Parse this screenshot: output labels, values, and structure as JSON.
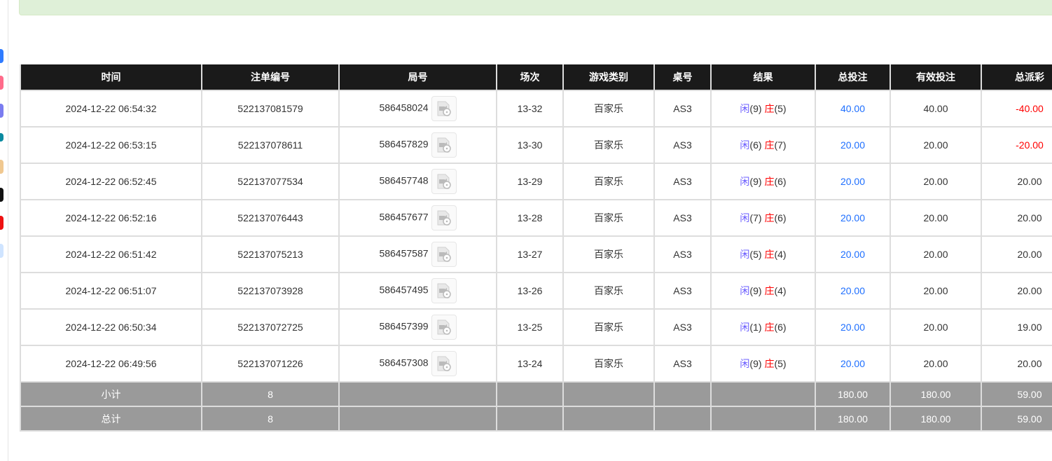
{
  "colors": {
    "header_bg": "#1a1a1a",
    "summary_bg": "#9a9a9a",
    "blue": "#1e6fff",
    "red": "#ff0000",
    "banner_bg": "#dff0d8"
  },
  "table": {
    "headers": [
      "时间",
      "注单编号",
      "局号",
      "场次",
      "游戏类别",
      "桌号",
      "结果",
      "总投注",
      "有效投注",
      "总派彩"
    ],
    "rows": [
      {
        "time": "2024-12-22 06:54:32",
        "bet_id": "522137081579",
        "round": "586458024",
        "session": "13-32",
        "game": "百家乐",
        "table": "AS3",
        "player_label": "闲",
        "player": "(9)",
        "banker_label": "庄",
        "banker": "(5)",
        "total_bet": "40.00",
        "valid_bet": "40.00",
        "payout": "-40.00",
        "payout_negative": true
      },
      {
        "time": "2024-12-22 06:53:15",
        "bet_id": "522137078611",
        "round": "586457829",
        "session": "13-30",
        "game": "百家乐",
        "table": "AS3",
        "player_label": "闲",
        "player": "(6)",
        "banker_label": "庄",
        "banker": "(7)",
        "total_bet": "20.00",
        "valid_bet": "20.00",
        "payout": "-20.00",
        "payout_negative": true
      },
      {
        "time": "2024-12-22 06:52:45",
        "bet_id": "522137077534",
        "round": "586457748",
        "session": "13-29",
        "game": "百家乐",
        "table": "AS3",
        "player_label": "闲",
        "player": "(9)",
        "banker_label": "庄",
        "banker": "(6)",
        "total_bet": "20.00",
        "valid_bet": "20.00",
        "payout": "20.00",
        "payout_negative": false
      },
      {
        "time": "2024-12-22 06:52:16",
        "bet_id": "522137076443",
        "round": "586457677",
        "session": "13-28",
        "game": "百家乐",
        "table": "AS3",
        "player_label": "闲",
        "player": "(7)",
        "banker_label": "庄",
        "banker": "(6)",
        "total_bet": "20.00",
        "valid_bet": "20.00",
        "payout": "20.00",
        "payout_negative": false
      },
      {
        "time": "2024-12-22 06:51:42",
        "bet_id": "522137075213",
        "round": "586457587",
        "session": "13-27",
        "game": "百家乐",
        "table": "AS3",
        "player_label": "闲",
        "player": "(5)",
        "banker_label": "庄",
        "banker": "(4)",
        "total_bet": "20.00",
        "valid_bet": "20.00",
        "payout": "20.00",
        "payout_negative": false
      },
      {
        "time": "2024-12-22 06:51:07",
        "bet_id": "522137073928",
        "round": "586457495",
        "session": "13-26",
        "game": "百家乐",
        "table": "AS3",
        "player_label": "闲",
        "player": "(9)",
        "banker_label": "庄",
        "banker": "(4)",
        "total_bet": "20.00",
        "valid_bet": "20.00",
        "payout": "20.00",
        "payout_negative": false
      },
      {
        "time": "2024-12-22 06:50:34",
        "bet_id": "522137072725",
        "round": "586457399",
        "session": "13-25",
        "game": "百家乐",
        "table": "AS3",
        "player_label": "闲",
        "player": "(1)",
        "banker_label": "庄",
        "banker": "(6)",
        "total_bet": "20.00",
        "valid_bet": "20.00",
        "payout": "19.00",
        "payout_negative": false
      },
      {
        "time": "2024-12-22 06:49:56",
        "bet_id": "522137071226",
        "round": "586457308",
        "session": "13-24",
        "game": "百家乐",
        "table": "AS3",
        "player_label": "闲",
        "player": "(9)",
        "banker_label": "庄",
        "banker": "(5)",
        "total_bet": "20.00",
        "valid_bet": "20.00",
        "payout": "20.00",
        "payout_negative": false
      }
    ],
    "summary": [
      {
        "label": "小计",
        "count": "8",
        "total_bet": "180.00",
        "valid_bet": "180.00",
        "payout": "59.00"
      },
      {
        "label": "总计",
        "count": "8",
        "total_bet": "180.00",
        "valid_bet": "180.00",
        "payout": "59.00"
      }
    ]
  }
}
